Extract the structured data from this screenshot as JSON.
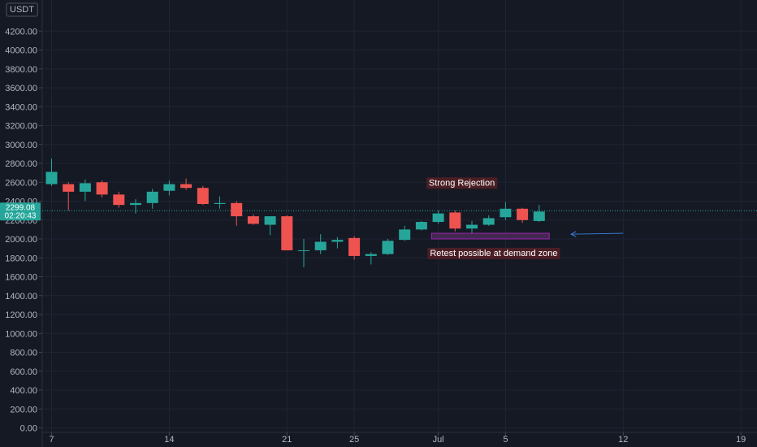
{
  "chart_data": {
    "type": "candlestick",
    "currency_label": "USDT",
    "y_ticks": [
      "0.00",
      "200.00",
      "400.00",
      "600.00",
      "800.00",
      "1000.00",
      "1200.00",
      "1400.00",
      "1600.00",
      "1800.00",
      "2000.00",
      "2200.00",
      "2400.00",
      "2600.00",
      "2800.00",
      "3000.00",
      "3200.00",
      "3400.00",
      "3600.00",
      "3800.00",
      "4000.00",
      "4200.00"
    ],
    "x_ticks": [
      {
        "day": 7,
        "label": "7"
      },
      {
        "day": 14,
        "label": "14"
      },
      {
        "day": 21,
        "label": "21"
      },
      {
        "day": 25,
        "label": "25"
      },
      {
        "day": 30,
        "label": "Jul"
      },
      {
        "day": 34,
        "label": "5"
      },
      {
        "day": 41,
        "label": "12"
      },
      {
        "day": 48,
        "label": "19"
      }
    ],
    "ylim": [
      0,
      4300
    ],
    "current_price": {
      "value": 2299.08,
      "label": "2299.08",
      "countdown": "02:20:43"
    },
    "candles": [
      {
        "o": 2580,
        "h": 2850,
        "l": 2560,
        "c": 2710
      },
      {
        "o": 2580,
        "h": 2600,
        "l": 2300,
        "c": 2500
      },
      {
        "o": 2500,
        "h": 2630,
        "l": 2400,
        "c": 2590
      },
      {
        "o": 2600,
        "h": 2620,
        "l": 2440,
        "c": 2470
      },
      {
        "o": 2470,
        "h": 2500,
        "l": 2330,
        "c": 2360
      },
      {
        "o": 2360,
        "h": 2420,
        "l": 2270,
        "c": 2380
      },
      {
        "o": 2380,
        "h": 2530,
        "l": 2320,
        "c": 2500
      },
      {
        "o": 2510,
        "h": 2620,
        "l": 2460,
        "c": 2580
      },
      {
        "o": 2580,
        "h": 2640,
        "l": 2520,
        "c": 2540
      },
      {
        "o": 2540,
        "h": 2560,
        "l": 2360,
        "c": 2370
      },
      {
        "o": 2370,
        "h": 2450,
        "l": 2320,
        "c": 2380
      },
      {
        "o": 2380,
        "h": 2400,
        "l": 2140,
        "c": 2240
      },
      {
        "o": 2240,
        "h": 2260,
        "l": 2150,
        "c": 2160
      },
      {
        "o": 2150,
        "h": 2230,
        "l": 2040,
        "c": 2240
      },
      {
        "o": 2240,
        "h": 2250,
        "l": 1880,
        "c": 1880
      },
      {
        "o": 1880,
        "h": 2000,
        "l": 1700,
        "c": 1880
      },
      {
        "o": 1880,
        "h": 2050,
        "l": 1840,
        "c": 1970
      },
      {
        "o": 1970,
        "h": 2020,
        "l": 1900,
        "c": 1990
      },
      {
        "o": 2010,
        "h": 2030,
        "l": 1780,
        "c": 1820
      },
      {
        "o": 1820,
        "h": 1860,
        "l": 1730,
        "c": 1840
      },
      {
        "o": 1840,
        "h": 2000,
        "l": 1830,
        "c": 1980
      },
      {
        "o": 1990,
        "h": 2140,
        "l": 1980,
        "c": 2100
      },
      {
        "o": 2100,
        "h": 2190,
        "l": 2090,
        "c": 2180
      },
      {
        "o": 2180,
        "h": 2300,
        "l": 2160,
        "c": 2270
      },
      {
        "o": 2280,
        "h": 2300,
        "l": 2080,
        "c": 2110
      },
      {
        "o": 2110,
        "h": 2190,
        "l": 2050,
        "c": 2150
      },
      {
        "o": 2150,
        "h": 2250,
        "l": 2140,
        "c": 2220
      },
      {
        "o": 2230,
        "h": 2390,
        "l": 2200,
        "c": 2320
      },
      {
        "o": 2320,
        "h": 2330,
        "l": 2170,
        "c": 2200
      },
      {
        "o": 2190,
        "h": 2360,
        "l": 2180,
        "c": 2290
      }
    ],
    "annotations": {
      "strong_rejection": "Strong Rejection",
      "retest": "Retest possible at demand zone"
    },
    "demand_zone": {
      "y_low": 2000,
      "y_high": 2060,
      "day_start": 29.6,
      "day_end": 36.6
    },
    "arrow": {
      "day_start": 41.0,
      "day_end": 37.9,
      "y_start": 2060,
      "y_end": 2050
    },
    "colors": {
      "background": "#151924",
      "up": "#26a69a",
      "down": "#ef5350",
      "grid": "#1f2433",
      "axis_text": "#b2b5be",
      "price_line": "#26a69a",
      "zone_fill": "#4a2a58",
      "zone_stroke": "#9c27b0",
      "label_bg": "#4a1e24",
      "arrow": "#3a7bd5"
    }
  }
}
